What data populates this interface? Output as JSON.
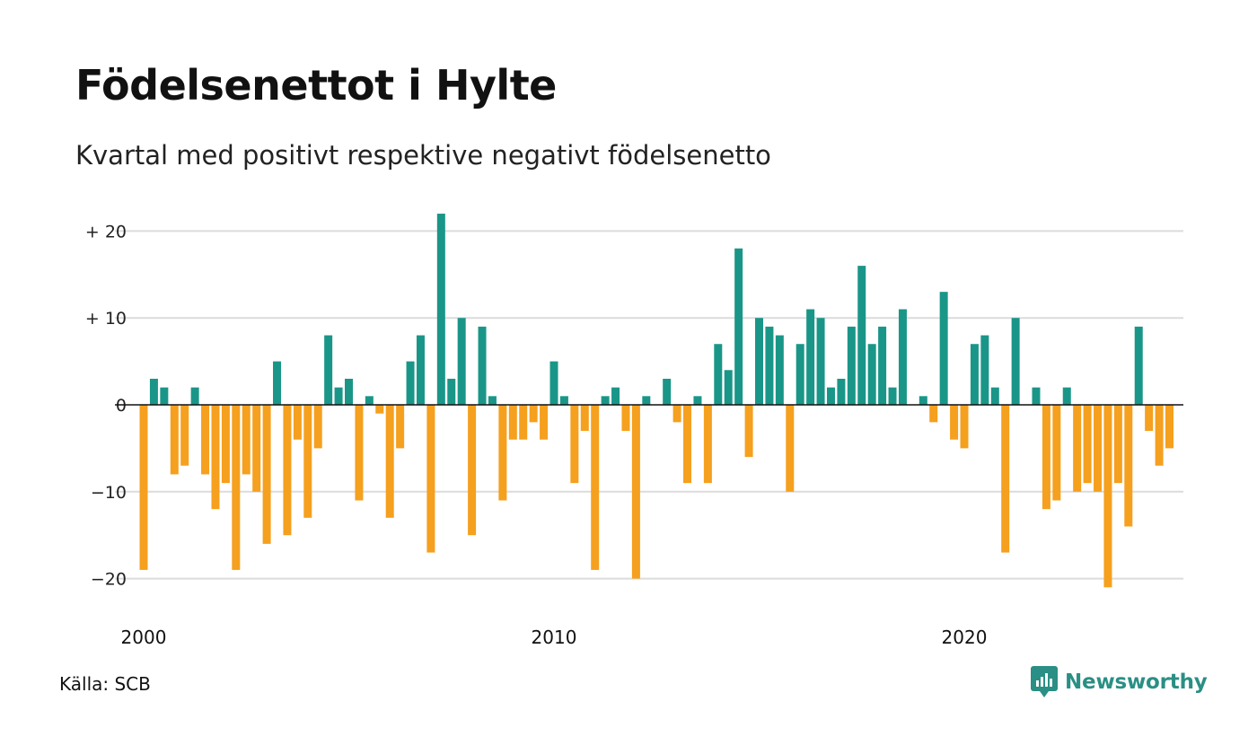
{
  "title": "Födelsenettot i Hylte",
  "subtitle": "Kvartal med positivt respektive negativt födelsenetto",
  "source": "Källa: SCB",
  "brand": "Newsworthy",
  "colors": {
    "positive": "#1a9688",
    "negative": "#f5a01e",
    "grid": "#dcdcdc",
    "zero": "#111111",
    "brand": "#2a8f84"
  },
  "chart_data": {
    "type": "bar",
    "x_start": 2000.0,
    "x_step": 0.25,
    "x_ticks": [
      2000,
      2010,
      2020
    ],
    "x_tick_labels": [
      "2000",
      "2010",
      "2020"
    ],
    "y_ticks": [
      20,
      10,
      0,
      -10,
      -20
    ],
    "y_tick_labels": [
      "+ 20",
      "+ 10",
      "0",
      "−10",
      "−20"
    ],
    "ylim": [
      -23,
      22
    ],
    "grid": true,
    "values": [
      -19,
      3,
      2,
      -8,
      -7,
      2,
      -8,
      -12,
      -9,
      -19,
      -8,
      -10,
      -16,
      5,
      -15,
      -4,
      -13,
      -5,
      8,
      2,
      3,
      -11,
      1,
      -1,
      -13,
      -5,
      5,
      8,
      -17,
      22,
      3,
      10,
      -15,
      9,
      1,
      -11,
      -4,
      -4,
      -2,
      -4,
      5,
      1,
      -9,
      -3,
      -19,
      1,
      2,
      -3,
      -20,
      1,
      0,
      3,
      -2,
      -9,
      1,
      -9,
      7,
      4,
      18,
      -6,
      10,
      9,
      8,
      -10,
      7,
      11,
      10,
      2,
      3,
      9,
      16,
      7,
      9,
      2,
      11,
      0,
      1,
      -2,
      13,
      -4,
      -5,
      7,
      8,
      2,
      -17,
      10,
      0,
      2,
      -12,
      -11,
      2,
      -10,
      -9,
      -10,
      -21,
      -9,
      -14,
      9,
      -3,
      -7,
      -5
    ]
  }
}
